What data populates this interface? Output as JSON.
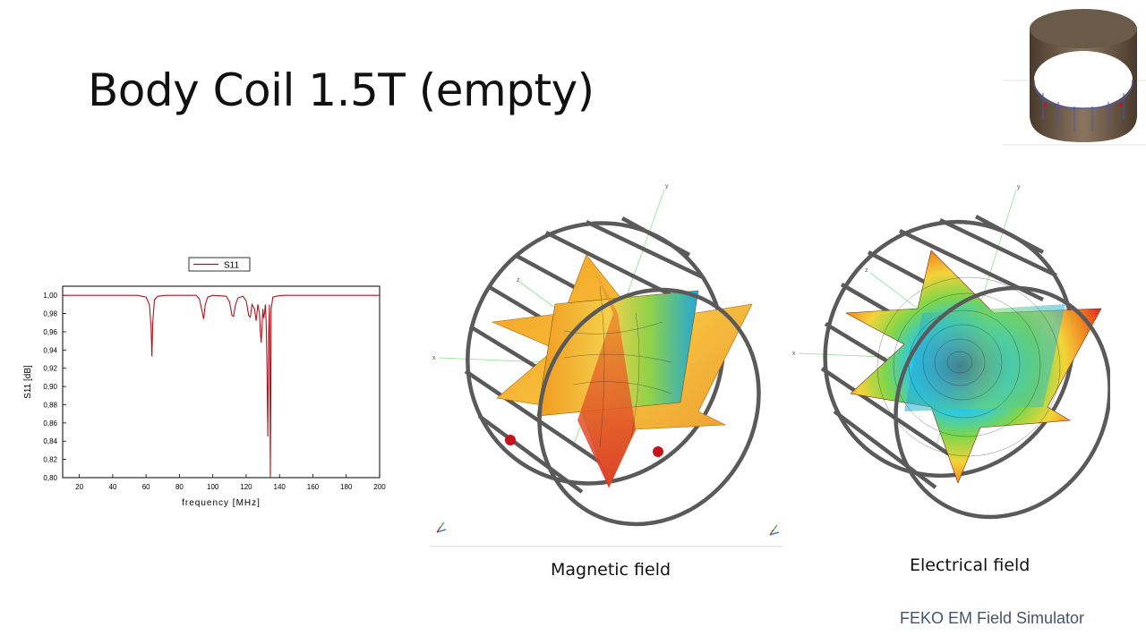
{
  "slide": {
    "title": "Body Coil 1.5T (empty)",
    "caption_magnetic": "Magnetic field",
    "caption_electrical": "Electrical field",
    "footer": "FEKO EM Field Simulator"
  },
  "axes_labels": {
    "x": "x",
    "y": "y",
    "z": "z"
  },
  "colors": {
    "curve": "#b5121b",
    "frame": "#5a5a5a",
    "footer": "#44546a"
  },
  "chart_data": {
    "type": "line",
    "xlabel": "frequency [MHz]",
    "ylabel": "S11 [dB]",
    "xlim": [
      10,
      200
    ],
    "ylim": [
      0.8,
      1.01
    ],
    "xticks": [
      20,
      40,
      60,
      80,
      100,
      120,
      140,
      160,
      180,
      200
    ],
    "yticks": [
      0.8,
      0.82,
      0.84,
      0.86,
      0.88,
      0.9,
      0.92,
      0.94,
      0.96,
      0.98,
      1.0
    ],
    "ytick_labels": [
      "0,80",
      "0,82",
      "0,84",
      "0,86",
      "0,88",
      "0,90",
      "0,92",
      "0,94",
      "0,96",
      "0,98",
      "1,00"
    ],
    "legend": "top-center",
    "series": [
      {
        "name": "S11",
        "x": [
          10,
          55,
          60,
          62,
          63,
          63.5,
          64,
          65,
          67,
          72,
          90,
          92,
          93.5,
          94.5,
          95.5,
          97,
          100,
          108,
          110,
          111.5,
          112.5,
          113.5,
          115,
          118,
          120,
          121.5,
          122.5,
          123.5,
          125,
          126,
          127,
          128,
          128.5,
          129,
          129.5,
          130,
          130.5,
          131,
          131.5,
          132,
          132.5,
          133,
          133.5,
          134,
          134.5,
          135,
          136,
          138,
          142,
          160,
          200
        ],
        "y": [
          1.0,
          1.0,
          0.998,
          0.99,
          0.965,
          0.933,
          0.97,
          0.995,
          0.999,
          1.0,
          1.0,
          0.996,
          0.983,
          0.974,
          0.99,
          0.998,
          1.0,
          0.999,
          0.993,
          0.978,
          0.977,
          0.989,
          0.997,
          0.999,
          0.994,
          0.978,
          0.976,
          0.99,
          0.985,
          0.972,
          0.99,
          0.98,
          0.96,
          0.948,
          0.965,
          0.985,
          0.975,
          0.98,
          0.99,
          0.97,
          0.92,
          0.845,
          0.96,
          0.99,
          0.8,
          0.985,
          0.998,
          0.999,
          1.0,
          1.0,
          1.0
        ]
      }
    ]
  }
}
